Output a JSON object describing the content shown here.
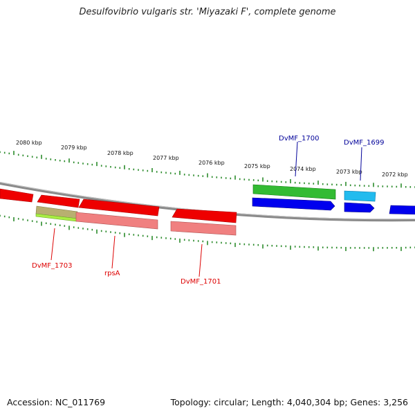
{
  "title": "Desulfovibrio vulgaris str. 'Miyazaki F', complete genome",
  "footer": {
    "accession": "Accession: NC_011769",
    "topology": "Topology: circular; Length: 4,040,304 bp; Genes: 3,256"
  },
  "colors": {
    "backbone": "#8a8a8a",
    "tick": "#2a8a2a",
    "gene_red": "#ee0000",
    "gene_pink": "#f08080",
    "gene_green": "#33bb33",
    "gene_blue": "#0000ee",
    "gene_cyan": "#22bbee",
    "gene_olive": "#b8b070",
    "gene_lime": "#aaee44",
    "label_red": "#dd0000",
    "label_blue": "#000099"
  },
  "kbp_labels": [
    "2080 kbp",
    "2079 kbp",
    "2078 kbp",
    "2077 kbp",
    "2076 kbp",
    "2075 kbp",
    "2074 kbp",
    "2073 kbp",
    "2072 kbp"
  ],
  "gene_labels": {
    "dvmf_1703": "DvMF_1703",
    "rpsA": "rpsA",
    "dvmf_1701": "DvMF_1701",
    "dvmf_1700": "DvMF_1700",
    "dvmf_1699": "DvMF_1699"
  }
}
